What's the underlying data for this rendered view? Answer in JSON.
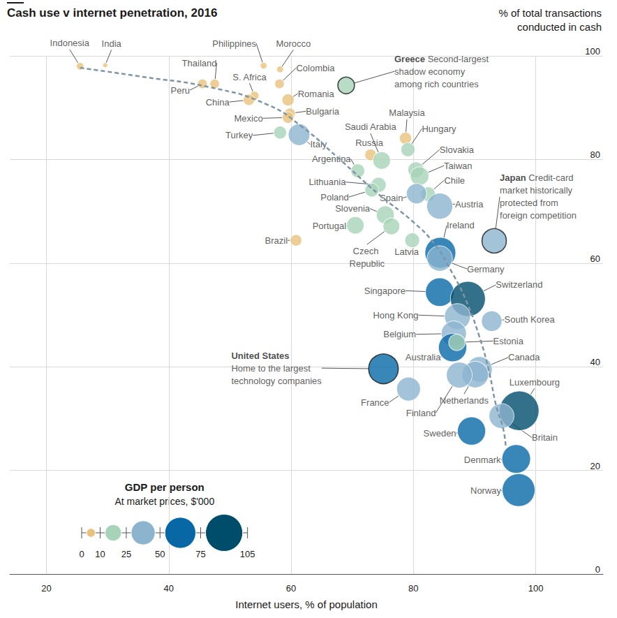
{
  "chart_data": {
    "type": "scatter",
    "title": "Cash use v internet penetration, 2016",
    "y_label": "% of total transactions\nconducted in cash",
    "x_label": "Internet users, % of population",
    "xlim": [
      14,
      111
    ],
    "xticks": [
      20,
      40,
      60,
      80,
      100
    ],
    "ylim": [
      0,
      100
    ],
    "yticks": [
      0,
      20,
      40,
      60,
      80,
      100
    ],
    "grid": true,
    "marker": "circle",
    "points": [
      {
        "label": "Indonesia",
        "x": 25.5,
        "y": 98.0,
        "gdp": 3.6
      },
      {
        "label": "India",
        "x": 29.6,
        "y": 98.2,
        "gdp": 1.7
      },
      {
        "label": "Philippines",
        "x": 55.5,
        "y": 98.1,
        "gdp": 3.0
      },
      {
        "label": "Morocco",
        "x": 58.2,
        "y": 97.4,
        "gdp": 2.9
      },
      {
        "label": "Thailand",
        "x": 47.5,
        "y": 94.6,
        "gdp": 5.9
      },
      {
        "label": "Peru",
        "x": 45.5,
        "y": 94.6,
        "gdp": 6.0
      },
      {
        "label": "S. Africa",
        "x": 54.0,
        "y": 92.3,
        "gdp": 5.3
      },
      {
        "label": "China",
        "x": 53.1,
        "y": 91.5,
        "gdp": 8.1
      },
      {
        "label": "Colombia",
        "x": 58.1,
        "y": 94.6,
        "gdp": 5.8
      },
      {
        "label": "Romania",
        "x": 59.5,
        "y": 91.5,
        "gdp": 9.5
      },
      {
        "label": "Bulgaria",
        "x": 59.8,
        "y": 88.9,
        "gdp": 7.4
      },
      {
        "label": "Mexico",
        "x": 59.5,
        "y": 88.1,
        "gdp": 8.7
      },
      {
        "label": "Turkey",
        "x": 58.2,
        "y": 85.2,
        "gdp": 10.8
      },
      {
        "label": "Italy",
        "x": 61.3,
        "y": 84.8,
        "gdp": 30.5
      },
      {
        "label": "Greece",
        "x": 69.0,
        "y": 94.3,
        "gdp": 18.1,
        "note": "Second-largest\nshadow economy\namong rich countries"
      },
      {
        "label": "Russia",
        "x": 73.0,
        "y": 80.9,
        "gdp": 8.7
      },
      {
        "label": "Saudi Arabia",
        "x": 74.8,
        "y": 79.8,
        "gdp": 20.0
      },
      {
        "label": "Malaysia",
        "x": 78.7,
        "y": 84.1,
        "gdp": 9.5
      },
      {
        "label": "Hungary",
        "x": 79.1,
        "y": 81.9,
        "gdp": 12.8
      },
      {
        "label": "Slovakia",
        "x": 80.4,
        "y": 78.0,
        "gdp": 16.5
      },
      {
        "label": "Taiwan",
        "x": 81.0,
        "y": 76.8,
        "gdp": 22.5
      },
      {
        "label": "Chile",
        "x": 82.4,
        "y": 73.3,
        "gdp": 13.8
      },
      {
        "label": "Spain",
        "x": 80.5,
        "y": 73.4,
        "gdp": 26.5
      },
      {
        "label": "Austria",
        "x": 84.3,
        "y": 71.0,
        "gdp": 44.2
      },
      {
        "label": "Argentina",
        "x": 70.9,
        "y": 77.8,
        "gdp": 12.4
      },
      {
        "label": "Lithuania",
        "x": 74.3,
        "y": 75.1,
        "gdp": 14.9
      },
      {
        "label": "Poland",
        "x": 73.2,
        "y": 74.1,
        "gdp": 12.4
      },
      {
        "label": "Slovenia",
        "x": 75.4,
        "y": 69.3,
        "gdp": 21.3
      },
      {
        "label": "Portugal",
        "x": 70.5,
        "y": 67.3,
        "gdp": 19.8
      },
      {
        "label": "Czech Republic",
        "x": 76.4,
        "y": 67.1,
        "gdp": 18.3
      },
      {
        "label": "Latvia",
        "x": 79.8,
        "y": 64.4,
        "gdp": 14.1
      },
      {
        "label": "Brazil",
        "x": 60.8,
        "y": 64.4,
        "gdp": 8.7
      },
      {
        "label": "Ireland",
        "x": 84.4,
        "y": 62.0,
        "gdp": 62.0
      },
      {
        "label": "Germany",
        "x": 84.3,
        "y": 60.9,
        "gdp": 42.0
      },
      {
        "label": "Japan",
        "x": 93.2,
        "y": 64.3,
        "gdp": 38.9,
        "note": "Credit-card\nmarket historically\nprotected from\nforeign competition"
      },
      {
        "label": "Singapore",
        "x": 84.3,
        "y": 54.4,
        "gdp": 53.0
      },
      {
        "label": "Switzerland",
        "x": 88.9,
        "y": 53.1,
        "gdp": 79.6
      },
      {
        "label": "Hong Kong",
        "x": 87.2,
        "y": 49.7,
        "gdp": 43.5
      },
      {
        "label": "South Korea",
        "x": 92.8,
        "y": 48.8,
        "gdp": 27.5
      },
      {
        "label": "Belgium",
        "x": 86.6,
        "y": 46.4,
        "gdp": 41.1
      },
      {
        "label": "Australia",
        "x": 86.4,
        "y": 43.7,
        "gdp": 51.8
      },
      {
        "label": "Estonia",
        "x": 87.1,
        "y": 44.7,
        "gdp": 17.7
      },
      {
        "label": "Canada",
        "x": 90.8,
        "y": 39.5,
        "gdp": 42.2
      },
      {
        "label": "Netherlands",
        "x": 90.1,
        "y": 38.5,
        "gdp": 45.6
      },
      {
        "label": "Finland",
        "x": 87.5,
        "y": 38.4,
        "gdp": 43.4
      },
      {
        "label": "France",
        "x": 79.2,
        "y": 35.7,
        "gdp": 36.9
      },
      {
        "label": "United States",
        "x": 75.1,
        "y": 39.6,
        "gdp": 57.6,
        "note": "Home to the largest\ntechnology companies"
      },
      {
        "label": "Luxembourg",
        "x": 97.3,
        "y": 31.5,
        "gdp": 102.0
      },
      {
        "label": "Britain",
        "x": 94.4,
        "y": 30.5,
        "gdp": 40.4
      },
      {
        "label": "Sweden",
        "x": 89.5,
        "y": 27.6,
        "gdp": 51.6
      },
      {
        "label": "Denmark",
        "x": 96.8,
        "y": 22.2,
        "gdp": 53.4
      },
      {
        "label": "Norway",
        "x": 97.2,
        "y": 16.2,
        "gdp": 70.6
      }
    ],
    "size": {
      "title": "GDP per person",
      "subtitle": "At market prices, $'000",
      "bins": [
        0,
        10,
        25,
        50,
        75,
        105
      ],
      "colors": [
        "#e9c27d",
        "#a7d3b8",
        "#8cb4cf",
        "#0868a6",
        "#004c6b"
      ]
    },
    "trend": {
      "x": [
        25.5,
        35.5,
        46.9,
        56.1,
        61.8,
        67.5,
        74.3,
        80.0,
        83.5,
        86.3,
        88.6,
        90.7,
        92.3,
        93.5,
        94.7,
        95.1
      ],
      "y": [
        97.7,
        96.0,
        93.9,
        90.6,
        86.3,
        80.5,
        73.3,
        67.9,
        63.6,
        58.2,
        52.8,
        46.1,
        39.4,
        32.6,
        27.9,
        24.5
      ],
      "line_style": "dashed",
      "color": "#7e95a5"
    }
  }
}
